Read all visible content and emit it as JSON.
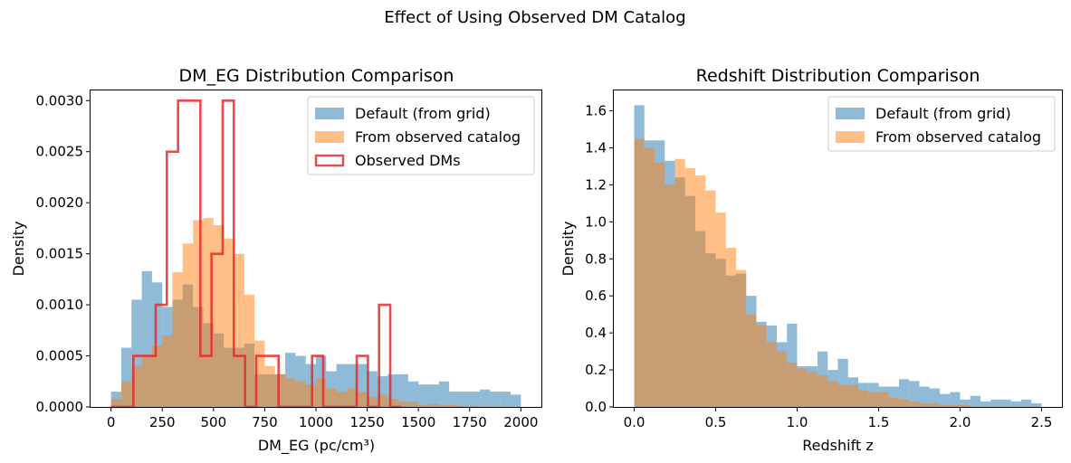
{
  "figure": {
    "suptitle": "Effect of Using Observed DM Catalog"
  },
  "colors": {
    "default": "#1f77b4",
    "catalog": "#ff7f0e",
    "observed": "#e32b2b"
  },
  "chart_data": [
    {
      "type": "histogram",
      "title": "DM_EG Distribution Comparison",
      "xlabel": "DM_EG (pc/cm³)",
      "ylabel": "Density",
      "xlim": [
        -100,
        2100
      ],
      "ylim": [
        0,
        0.0031
      ],
      "xticks": [
        0,
        250,
        500,
        750,
        1000,
        1250,
        1500,
        1750,
        2000
      ],
      "xtick_labels": [
        "0",
        "250",
        "500",
        "750",
        "1000",
        "1250",
        "1500",
        "1750",
        "2000"
      ],
      "yticks": [
        0,
        0.0005,
        0.001,
        0.0015,
        0.002,
        0.0025,
        0.003
      ],
      "ytick_labels": [
        "0.0000",
        "0.0005",
        "0.0010",
        "0.0015",
        "0.0020",
        "0.0025",
        "0.0030"
      ],
      "legend_position": "top-right",
      "series": [
        {
          "name": "Default (from grid)",
          "style": "filled",
          "alpha": 0.5,
          "bins": [
            0,
            50,
            100,
            150,
            200,
            250,
            300,
            350,
            400,
            450,
            500,
            550,
            600,
            650,
            700,
            750,
            800,
            850,
            900,
            950,
            1000,
            1050,
            1100,
            1150,
            1200,
            1250,
            1300,
            1350,
            1400,
            1450,
            1500,
            1550,
            1600,
            1650,
            1700,
            1750,
            1800,
            1850,
            1900,
            1950,
            2000
          ],
          "values": [
            0.00015,
            0.00058,
            0.00105,
            0.00133,
            0.00122,
            0.00098,
            0.00105,
            0.0012,
            0.00098,
            0.00082,
            0.00072,
            0.00058,
            0.00058,
            0.00062,
            0.00032,
            0.00032,
            0.00032,
            0.00053,
            0.0005,
            0.00042,
            0.0005,
            0.00035,
            0.00042,
            0.00042,
            0.00042,
            0.00035,
            0.0003,
            0.00032,
            0.00032,
            0.00025,
            0.00022,
            0.00022,
            0.00025,
            0.00015,
            0.00015,
            0.00015,
            0.00017,
            0.00015,
            0.00015,
            0.00012
          ]
        },
        {
          "name": "From observed catalog",
          "style": "filled",
          "alpha": 0.5,
          "bins": [
            0,
            50,
            100,
            150,
            200,
            250,
            300,
            350,
            400,
            450,
            500,
            550,
            600,
            650,
            700,
            750,
            800,
            850,
            900,
            950,
            1000,
            1050,
            1100,
            1150,
            1200,
            1250,
            1300,
            1350,
            1400,
            1450,
            1500,
            1550,
            1600,
            1650,
            1700,
            1750,
            1800,
            1850,
            1900,
            1950,
            2000
          ],
          "values": [
            8e-05,
            0.00025,
            0.0004,
            0.0005,
            0.0006,
            0.0007,
            0.00132,
            0.0016,
            0.00183,
            0.00185,
            0.00178,
            0.00165,
            0.0015,
            0.0011,
            0.00065,
            0.0004,
            0.00032,
            0.00028,
            0.00025,
            0.00022,
            0.00028,
            0.00018,
            0.00015,
            0.00018,
            0.00015,
            0.0001,
            0.00012,
            8e-05,
            5e-05,
            5e-05,
            2e-05,
            3e-05,
            2e-05,
            2e-05,
            1e-05,
            1e-05,
            0.0,
            0.0,
            0.0,
            0.0
          ]
        },
        {
          "name": "Observed DMs",
          "style": "step",
          "bins": [
            0,
            54.5,
            109,
            163.5,
            218,
            272.5,
            327,
            381.5,
            436,
            490.5,
            545,
            599.5,
            654,
            708.5,
            763,
            817.5,
            872,
            926.5,
            981,
            1035.5,
            1090,
            1144.5,
            1199,
            1253.5,
            1308,
            1362.5,
            1417
          ],
          "values": [
            0,
            0,
            0.0005,
            0.0005,
            0.001,
            0.0025,
            0.003,
            0.003,
            0.0005,
            0.0015,
            0.003,
            0.0005,
            0,
            0.0005,
            0.0005,
            0,
            0,
            0,
            0.0005,
            0,
            0,
            0,
            0.0005,
            0,
            0.001,
            0
          ]
        }
      ]
    },
    {
      "type": "histogram",
      "title": "Redshift Distribution Comparison",
      "xlabel": "Redshift z",
      "ylabel": "Density",
      "xlim": [
        -0.125,
        2.625
      ],
      "ylim": [
        0,
        1.71
      ],
      "xticks": [
        0,
        0.5,
        1,
        1.5,
        2,
        2.5
      ],
      "xtick_labels": [
        "0.0",
        "0.5",
        "1.0",
        "1.5",
        "2.0",
        "2.5"
      ],
      "yticks": [
        0,
        0.2,
        0.4,
        0.6,
        0.8,
        1.0,
        1.2,
        1.4,
        1.6
      ],
      "ytick_labels": [
        "0.0",
        "0.2",
        "0.4",
        "0.6",
        "0.8",
        "1.0",
        "1.2",
        "1.4",
        "1.6"
      ],
      "legend_position": "top-right",
      "series": [
        {
          "name": "Default (from grid)",
          "style": "filled",
          "alpha": 0.5,
          "bins": [
            0,
            0.0625,
            0.125,
            0.1875,
            0.25,
            0.3125,
            0.375,
            0.4375,
            0.5,
            0.5625,
            0.625,
            0.6875,
            0.75,
            0.8125,
            0.875,
            0.9375,
            1.0,
            1.0625,
            1.125,
            1.1875,
            1.25,
            1.3125,
            1.375,
            1.4375,
            1.5,
            1.5625,
            1.625,
            1.6875,
            1.75,
            1.8125,
            1.875,
            1.9375,
            2.0,
            2.0625,
            2.125,
            2.1875,
            2.25,
            2.3125,
            2.375,
            2.4375,
            2.5
          ],
          "values": [
            1.63,
            1.44,
            1.44,
            1.33,
            1.24,
            1.14,
            0.95,
            0.83,
            0.8,
            0.71,
            0.72,
            0.6,
            0.46,
            0.44,
            0.35,
            0.45,
            0.22,
            0.22,
            0.3,
            0.2,
            0.26,
            0.16,
            0.13,
            0.13,
            0.11,
            0.11,
            0.15,
            0.14,
            0.11,
            0.1,
            0.07,
            0.08,
            0.04,
            0.06,
            0.03,
            0.04,
            0.04,
            0.03,
            0.04,
            0.02
          ]
        },
        {
          "name": "From observed catalog",
          "style": "filled",
          "alpha": 0.5,
          "bins": [
            0,
            0.0625,
            0.125,
            0.1875,
            0.25,
            0.3125,
            0.375,
            0.4375,
            0.5,
            0.5625,
            0.625,
            0.6875,
            0.75,
            0.8125,
            0.875,
            0.9375,
            1.0,
            1.0625,
            1.125,
            1.1875,
            1.25,
            1.3125,
            1.375,
            1.4375,
            1.5,
            1.5625,
            1.625,
            1.6875,
            1.75,
            1.8125,
            1.875,
            1.9375,
            2.0,
            2.0625,
            2.125,
            2.1875,
            2.25,
            2.3125,
            2.375,
            2.4375,
            2.5
          ],
          "values": [
            1.45,
            1.4,
            1.32,
            1.2,
            1.34,
            1.29,
            1.25,
            1.17,
            1.05,
            0.86,
            0.74,
            0.5,
            0.44,
            0.35,
            0.3,
            0.24,
            0.21,
            0.19,
            0.17,
            0.14,
            0.12,
            0.12,
            0.09,
            0.08,
            0.08,
            0.05,
            0.04,
            0.03,
            0.02,
            0.02,
            0.01,
            0.01,
            0.01,
            0.0,
            0.0,
            0.0,
            0.0,
            0.0,
            0.0,
            0.0
          ]
        }
      ]
    }
  ]
}
